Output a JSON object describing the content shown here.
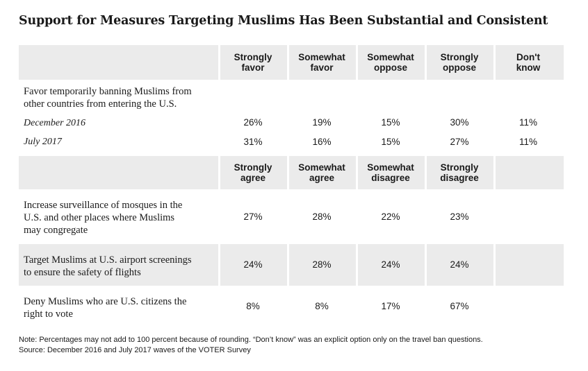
{
  "title": "Support for Measures Targeting Muslims Has Been Substantial and Consistent",
  "section1": {
    "headers": [
      [
        "Strongly",
        "favor"
      ],
      [
        "Somewhat",
        "favor"
      ],
      [
        "Somewhat",
        "oppose"
      ],
      [
        "Strongly",
        "oppose"
      ],
      [
        "Don't",
        "know"
      ]
    ],
    "question": [
      "Favor temporarily banning Muslims from",
      "other countries from entering the U.S."
    ],
    "rows": [
      {
        "label": "December 2016",
        "values": [
          "26%",
          "19%",
          "15%",
          "30%",
          "11%"
        ]
      },
      {
        "label": "July 2017",
        "values": [
          "31%",
          "16%",
          "15%",
          "27%",
          "11%"
        ]
      }
    ]
  },
  "section2": {
    "headers": [
      [
        "Strongly",
        "agree"
      ],
      [
        "Somewhat",
        "agree"
      ],
      [
        "Somewhat",
        "disagree"
      ],
      [
        "Strongly",
        "disagree"
      ],
      [
        "",
        ""
      ]
    ],
    "rows": [
      {
        "label": [
          "Increase surveillance of mosques in the",
          "U.S. and other places where Muslims",
          "may congregate"
        ],
        "values": [
          "27%",
          "28%",
          "22%",
          "23%"
        ]
      },
      {
        "label": [
          "Target Muslims at U.S. airport screenings",
          "to ensure the safety of flights"
        ],
        "values": [
          "24%",
          "28%",
          "24%",
          "24%"
        ]
      },
      {
        "label": [
          "Deny Muslims who are U.S. citizens the",
          "right to vote"
        ],
        "values": [
          "8%",
          "8%",
          "17%",
          "67%"
        ]
      }
    ]
  },
  "notes": [
    "Note: Percentages may not add to 100 percent because of rounding. “Don’t know” was an explicit option only on the travel ban questions.",
    "Source: December 2016 and July 2017 waves of the VOTER Survey"
  ]
}
